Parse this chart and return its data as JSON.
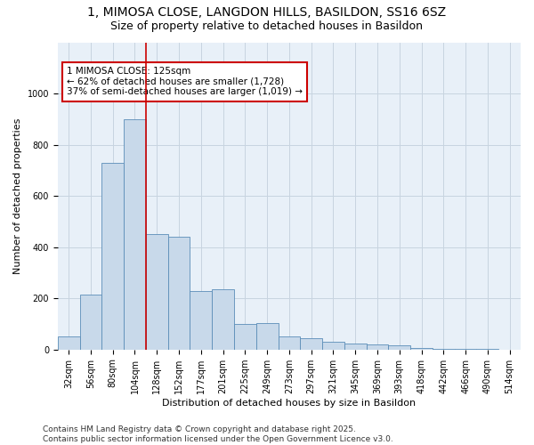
{
  "title_line1": "1, MIMOSA CLOSE, LANGDON HILLS, BASILDON, SS16 6SZ",
  "title_line2": "Size of property relative to detached houses in Basildon",
  "xlabel": "Distribution of detached houses by size in Basildon",
  "ylabel": "Number of detached properties",
  "bar_color": "#c8d9ea",
  "bar_edge_color": "#5b8db8",
  "grid_color": "#c8d4e0",
  "bg_color": "#e8f0f8",
  "vline_color": "#cc0000",
  "annotation_text": "1 MIMOSA CLOSE: 125sqm\n← 62% of detached houses are smaller (1,728)\n37% of semi-detached houses are larger (1,019) →",
  "annotation_box_color": "#ffffff",
  "annotation_box_edge": "#cc0000",
  "categories": [
    "32sqm",
    "56sqm",
    "80sqm",
    "104sqm",
    "128sqm",
    "152sqm",
    "177sqm",
    "201sqm",
    "225sqm",
    "249sqm",
    "273sqm",
    "297sqm",
    "321sqm",
    "345sqm",
    "369sqm",
    "393sqm",
    "418sqm",
    "442sqm",
    "466sqm",
    "490sqm",
    "514sqm"
  ],
  "values": [
    50,
    215,
    730,
    900,
    450,
    440,
    230,
    235,
    100,
    105,
    50,
    45,
    30,
    25,
    20,
    15,
    5,
    2,
    2,
    1,
    0
  ],
  "ylim": [
    0,
    1200
  ],
  "yticks": [
    0,
    200,
    400,
    600,
    800,
    1000
  ],
  "footer_line1": "Contains HM Land Registry data © Crown copyright and database right 2025.",
  "footer_line2": "Contains public sector information licensed under the Open Government Licence v3.0.",
  "title_fontsize": 10,
  "subtitle_fontsize": 9,
  "axis_label_fontsize": 8,
  "tick_fontsize": 7,
  "annotation_fontsize": 7.5,
  "footer_fontsize": 6.5,
  "vline_index": 4.5
}
